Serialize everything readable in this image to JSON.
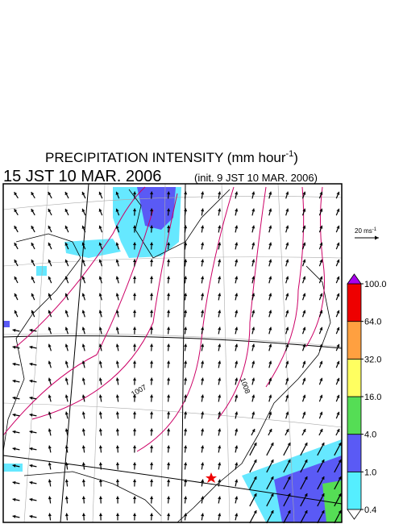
{
  "title": {
    "text": "PRECIPITATION INTENSITY (mm hour",
    "exponent": "-1",
    "close": ")"
  },
  "valid_time": "15 JST 10 MAR. 2006",
  "init_time": "(init. 9 JST 10 MAR. 2006)",
  "wind_scale": {
    "text": "20 ms",
    "exponent": "-1"
  },
  "contour_labels": [
    1007,
    1008
  ],
  "colorbar": {
    "ticks": [
      {
        "value": 0.4,
        "label": "0.4"
      },
      {
        "value": 1,
        "label": "1.0"
      },
      {
        "value": 4,
        "label": "4.0"
      },
      {
        "value": 16,
        "label": "16.0"
      },
      {
        "value": 32,
        "label": "32.0"
      },
      {
        "value": 64,
        "label": "64.0"
      },
      {
        "value": 100,
        "label": "100.0"
      }
    ],
    "colors": [
      "#55eeff",
      "#5a5af5",
      "#55dd55",
      "#ffff60",
      "#ffa040",
      "#ee0000"
    ],
    "under_color": "#ffffff",
    "over_color": "#aa00ee"
  }
}
